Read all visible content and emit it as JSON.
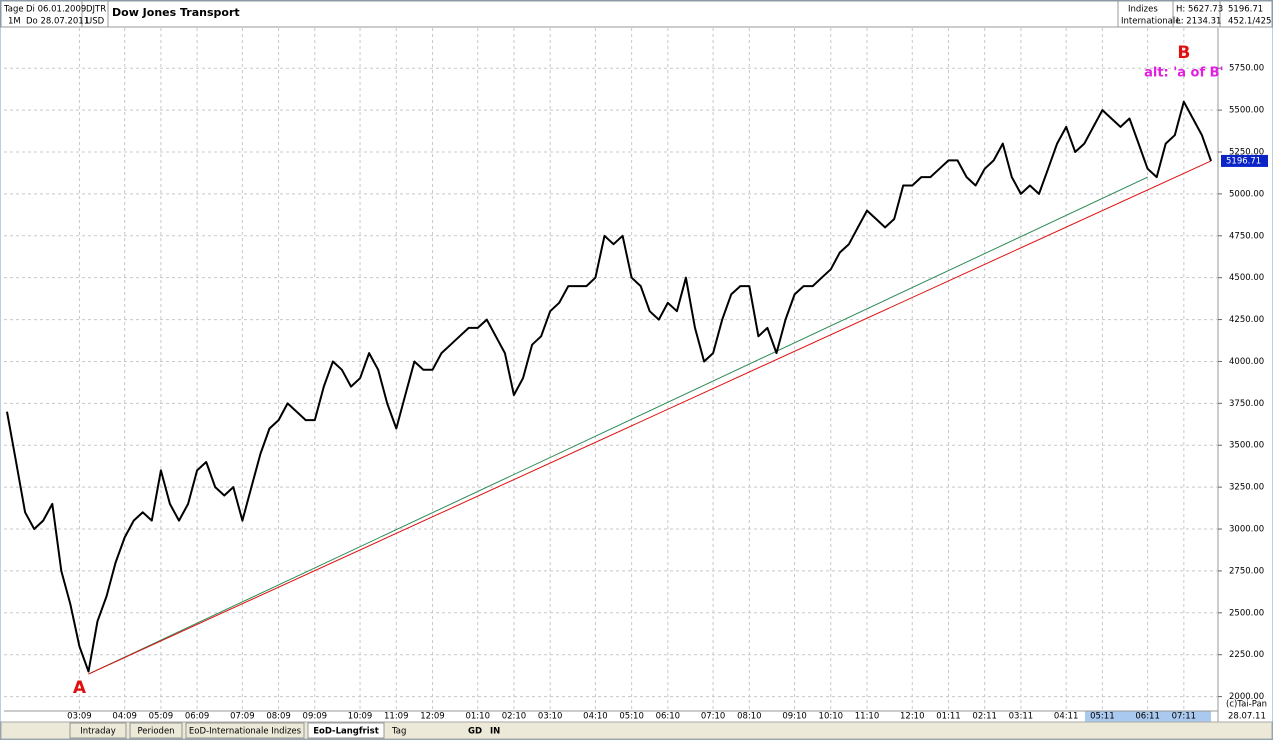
{
  "header": {
    "period_label": "Tage",
    "interval": "1M",
    "start": "Di 06.01.2009",
    "end": "Do 28.07.2011",
    "symbol": "DJTR",
    "currency": "USD",
    "name": "Dow Jones Transport",
    "group1": "Indizes",
    "group2": "Internationale",
    "high": "H: 5627.73",
    "low": "L: 2134.31",
    "last": "5196.71",
    "volume": "452.1/425"
  },
  "toolbar": {
    "tabs": [
      "Intraday",
      "Perioden",
      "EoD-Internationale Indizes",
      "EoD-Langfrist"
    ],
    "period": "Tag",
    "buttons": [
      "GD",
      "IN"
    ],
    "date": "28.07.11",
    "copyright": "(c)Tai-Pan"
  },
  "chart_data": {
    "type": "line",
    "categories": [
      null,
      null,
      null,
      null,
      null,
      null,
      null,
      null,
      "03:09",
      null,
      null,
      null,
      null,
      "04:09",
      null,
      null,
      null,
      "05:09",
      null,
      null,
      null,
      "06:09",
      null,
      null,
      null,
      null,
      "07:09",
      null,
      null,
      null,
      "08:09",
      null,
      null,
      null,
      "09:09",
      null,
      null,
      null,
      null,
      "10:09",
      null,
      null,
      null,
      "11:09",
      null,
      null,
      null,
      "12:09",
      null,
      null,
      null,
      null,
      "01:10",
      null,
      null,
      null,
      "02:10",
      null,
      null,
      null,
      "03:10",
      null,
      null,
      null,
      null,
      "04:10",
      null,
      null,
      null,
      "05:10",
      null,
      null,
      null,
      "06:10",
      null,
      null,
      null,
      null,
      "07:10",
      null,
      null,
      null,
      "08:10",
      null,
      null,
      null,
      null,
      "09:10",
      null,
      null,
      null,
      "10:10",
      null,
      null,
      null,
      "11:10",
      null,
      null,
      null,
      null,
      "12:10",
      null,
      null,
      null,
      "01:11",
      null,
      null,
      null,
      "02:11",
      null,
      null,
      null,
      "03:11",
      null,
      null,
      null,
      null,
      "04:11",
      null,
      null,
      null,
      "05:11",
      null,
      null,
      null,
      null,
      "06:11",
      null,
      null,
      null,
      "07:11",
      null,
      null,
      null
    ],
    "series": [
      {
        "name": "Dow Jones Transport",
        "color": "#000000",
        "values": [
          3700,
          3400,
          3100,
          3000,
          3050,
          3150,
          2750,
          2550,
          2300,
          2150,
          2450,
          2600,
          2800,
          2950,
          3050,
          3100,
          3050,
          3350,
          3150,
          3050,
          3150,
          3350,
          3400,
          3250,
          3200,
          3250,
          3050,
          3250,
          3450,
          3600,
          3650,
          3750,
          3700,
          3650,
          3650,
          3850,
          4000,
          3950,
          3850,
          3900,
          4050,
          3950,
          3750,
          3600,
          3800,
          4000,
          3950,
          3950,
          4050,
          4100,
          4150,
          4200,
          4200,
          4250,
          4150,
          4050,
          3800,
          3900,
          4100,
          4150,
          4300,
          4350,
          4450,
          4450,
          4450,
          4500,
          4750,
          4700,
          4750,
          4500,
          4450,
          4300,
          4250,
          4350,
          4300,
          4500,
          4200,
          4000,
          4050,
          4250,
          4400,
          4450,
          4450,
          4150,
          4200,
          4050,
          4250,
          4400,
          4450,
          4450,
          4500,
          4550,
          4650,
          4700,
          4800,
          4900,
          4850,
          4800,
          4850,
          5050,
          5050,
          5100,
          5100,
          5150,
          5200,
          5200,
          5100,
          5050,
          5150,
          5200,
          5300,
          5100,
          5000,
          5050,
          5000,
          5150,
          5300,
          5400,
          5250,
          5300,
          5400,
          5500,
          5450,
          5400,
          5450,
          5300,
          5150,
          5100,
          5300,
          5350,
          5550,
          5450,
          5350,
          5196.71
        ]
      }
    ],
    "trendlines": [
      {
        "color": "#2e8b57",
        "from": [
          9,
          2134.31
        ],
        "to": [
          126,
          5100
        ]
      },
      {
        "color": "#e01010",
        "from": [
          9,
          2134.31
        ],
        "to": [
          133,
          5196.71
        ]
      }
    ],
    "annotations": [
      {
        "text": "A",
        "color": "#e01010",
        "at": [
          8,
          2050
        ]
      },
      {
        "text": "B",
        "color": "#e01010",
        "at": [
          130,
          5840
        ]
      },
      {
        "text": "alt: 'a of B'",
        "color": "#e020e0",
        "at": [
          130,
          5720
        ]
      }
    ],
    "ylim": [
      1920,
      5990
    ],
    "yticks": [
      {
        "value": 2000,
        "label": "2000.00"
      },
      {
        "value": 2250,
        "label": "2250.00"
      },
      {
        "value": 2500,
        "label": "2500.00"
      },
      {
        "value": 2750,
        "label": "2750.00"
      },
      {
        "value": 3000,
        "label": "3000.00"
      },
      {
        "value": 3250,
        "label": "3250.00"
      },
      {
        "value": 3500,
        "label": "3500.00"
      },
      {
        "value": 3750,
        "label": "3750.00"
      },
      {
        "value": 4000,
        "label": "4000.00"
      },
      {
        "value": 4250,
        "label": "4250.00"
      },
      {
        "value": 4500,
        "label": "4500.00"
      },
      {
        "value": 4750,
        "label": "4750.00"
      },
      {
        "value": 5000,
        "label": "5000.00"
      },
      {
        "value": 5250,
        "label": "5250.00"
      },
      {
        "value": 5500,
        "label": "5500.00"
      },
      {
        "value": 5750,
        "label": "5750.00"
      }
    ],
    "grid": true
  }
}
